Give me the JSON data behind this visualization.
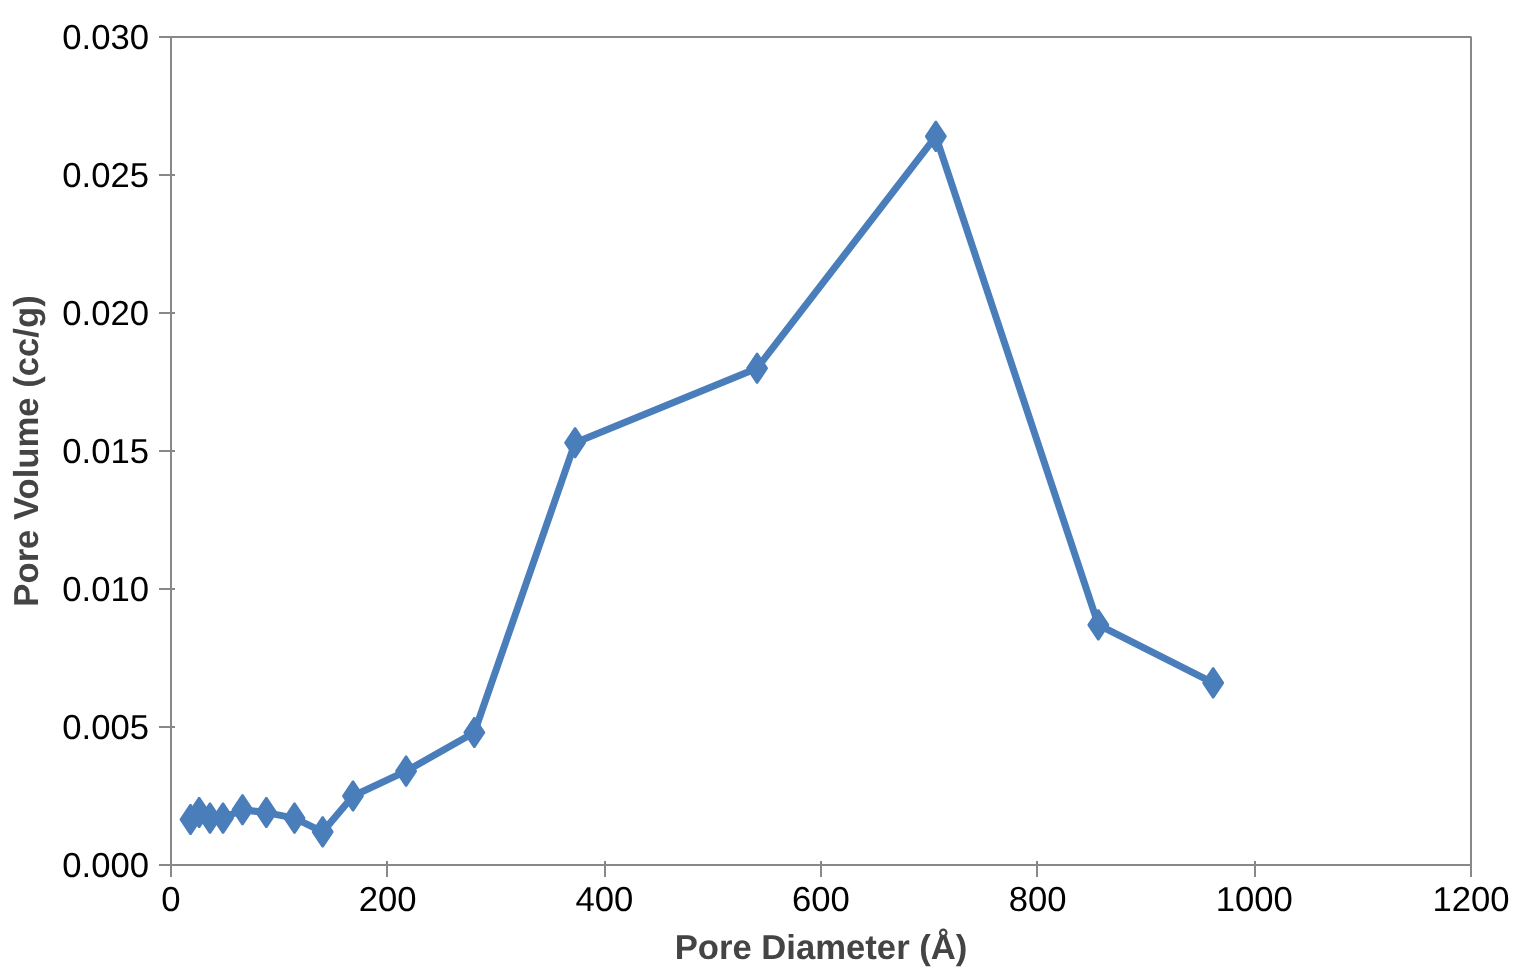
{
  "chart_data": {
    "type": "line",
    "xlabel": "Pore Diameter (Å)",
    "ylabel": "Pore Volume (cc/g)",
    "x": [
      18,
      26,
      36,
      48,
      66,
      88,
      114,
      140,
      168,
      217,
      280,
      373,
      541,
      706,
      856,
      962
    ],
    "series": [
      {
        "color": "#4a7ebb",
        "values": [
          0.00165,
          0.0019,
          0.0017,
          0.0017,
          0.002,
          0.0019,
          0.0017,
          0.0012,
          0.0025,
          0.0034,
          0.0048,
          0.0153,
          0.018,
          0.0264,
          0.0087,
          0.0066
        ]
      }
    ],
    "xlim": [
      0,
      1200
    ],
    "xticks": [
      0,
      200,
      400,
      600,
      800,
      1000,
      1200
    ],
    "ylim": [
      0,
      0.03
    ],
    "yticks": [
      {
        "value": 0,
        "label": "0.000"
      },
      {
        "value": 0.005,
        "label": "0.005"
      },
      {
        "value": 0.01,
        "label": "0.010"
      },
      {
        "value": 0.015,
        "label": "0.015"
      },
      {
        "value": 0.02,
        "label": "0.020"
      },
      {
        "value": 0.025,
        "label": "0.025"
      },
      {
        "value": 0.03,
        "label": "0.030"
      }
    ],
    "grid": false,
    "marker": "diamond",
    "line_style": "solid"
  }
}
